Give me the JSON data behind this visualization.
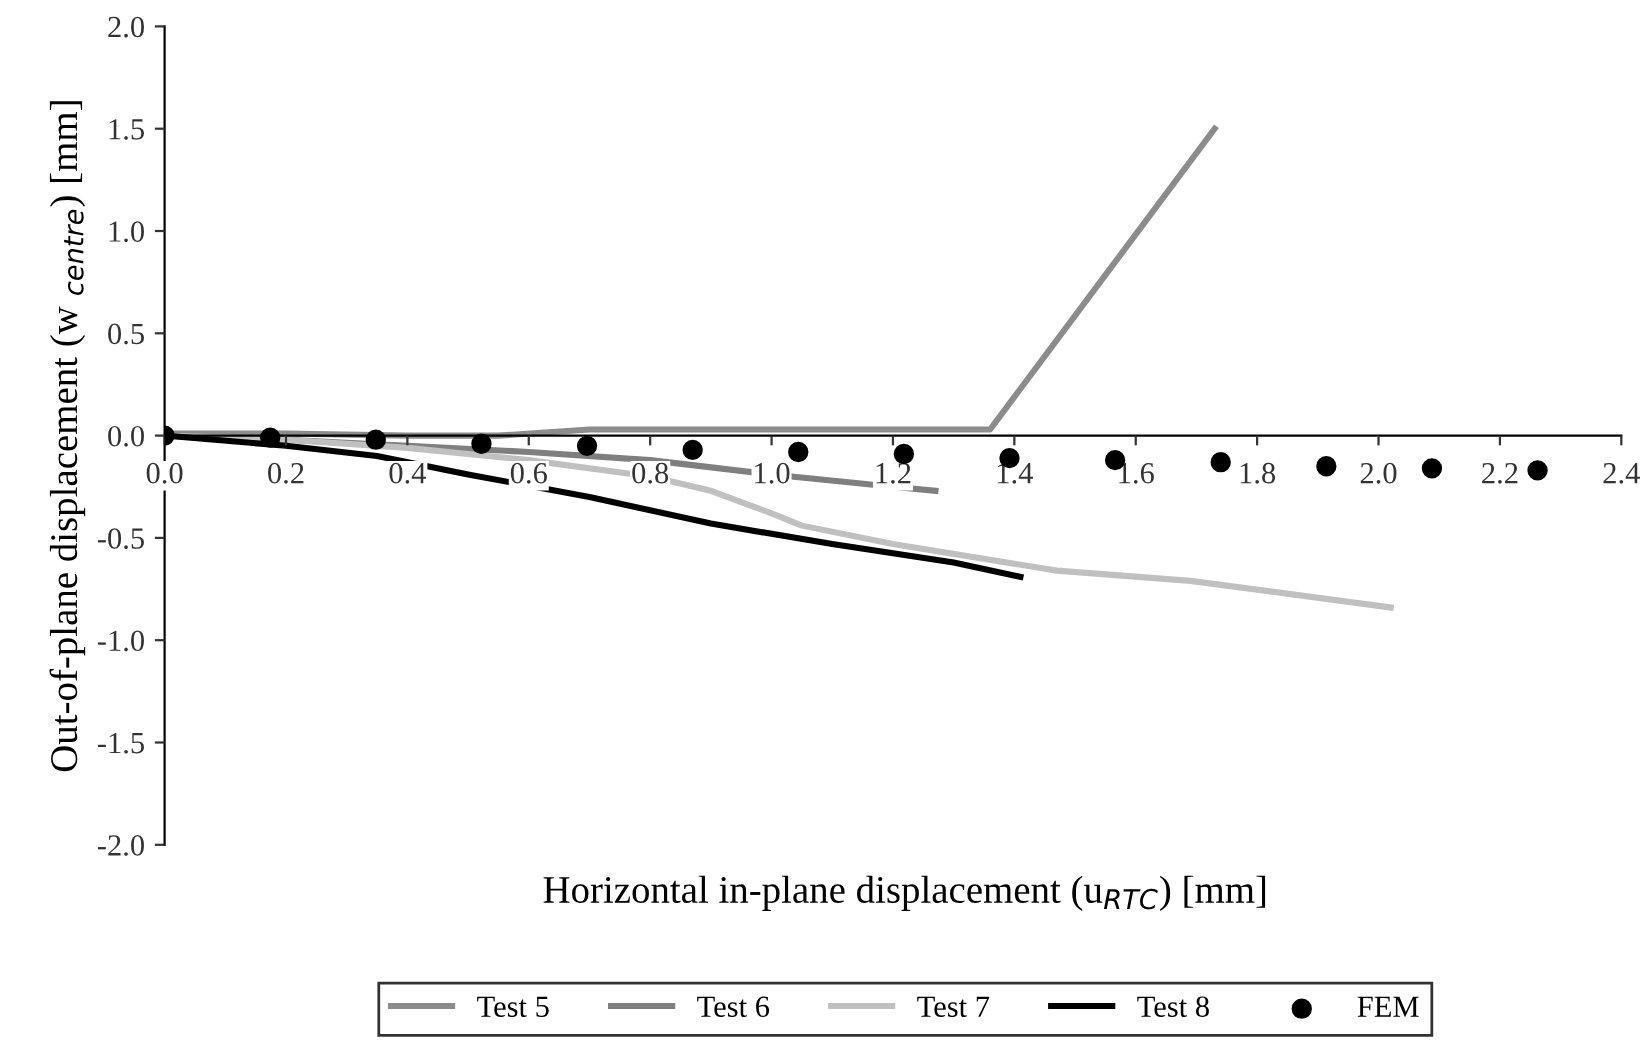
{
  "chart_data": {
    "type": "line",
    "xlabel": "Horizontal in-plane displacement (u$_{RTC}$) [mm]",
    "ylabel": "Out-of-plane displacement (w $_{centre}$) [mm]",
    "xlim": [
      0,
      2.4
    ],
    "xticks": [
      {
        "value": 0,
        "label": "0.0"
      },
      0.2,
      0.4,
      0.6,
      0.8,
      {
        "value": 1,
        "label": "1.0"
      },
      1.2,
      1.4,
      1.6,
      1.8,
      {
        "value": 2,
        "label": "2.0"
      },
      2.2,
      2.4
    ],
    "ylim": [
      -2,
      2
    ],
    "yticks": [
      {
        "value": -2,
        "label": "-2.0"
      },
      -1.5,
      {
        "value": -1,
        "label": "-1.0"
      },
      -0.5,
      {
        "value": 0,
        "label": "0.0"
      },
      0.5,
      {
        "value": 1,
        "label": "1.0"
      },
      1.5,
      {
        "value": 2,
        "label": "2.0"
      }
    ],
    "grid": false,
    "legend": "bottom",
    "line_style": "solid",
    "series": [
      {
        "name": "Test 5",
        "color": "#8c8c8c",
        "x": [
          0,
          0.2,
          0.4,
          0.55,
          0.7,
          1.0,
          1.36,
          1.73
        ],
        "values": [
          0.01,
          0.01,
          0.0,
          0.0,
          0.03,
          0.03,
          0.03,
          1.5
        ]
      },
      {
        "name": "Test 6",
        "color": "#7f7f7f",
        "x": [
          0,
          0.2,
          0.4,
          0.6,
          0.8,
          1.0,
          1.2,
          1.27
        ],
        "values": [
          0,
          -0.02,
          -0.05,
          -0.08,
          -0.12,
          -0.19,
          -0.25,
          -0.27
        ]
      },
      {
        "name": "Test 7",
        "color": "#c0c0c0",
        "x": [
          0,
          0.2,
          0.4,
          0.6,
          0.8,
          0.9,
          1.0,
          1.05,
          1.2,
          1.47,
          1.69,
          2.02
        ],
        "values": [
          0,
          -0.02,
          -0.06,
          -0.12,
          -0.2,
          -0.27,
          -0.38,
          -0.44,
          -0.53,
          -0.66,
          -0.71,
          -0.84
        ]
      },
      {
        "name": "Test 8",
        "color": "#000000",
        "x": [
          0,
          0.2,
          0.35,
          0.5,
          0.7,
          0.9,
          1.1,
          1.3,
          1.41
        ],
        "values": [
          0,
          -0.05,
          -0.1,
          -0.19,
          -0.3,
          -0.43,
          -0.53,
          -0.62,
          -0.69
        ]
      },
      {
        "name": "FEM",
        "type": "scatter",
        "marker": "circle",
        "color": "#000000",
        "x": [
          0,
          0.174,
          0.348,
          0.522,
          0.696,
          0.87,
          1.044,
          1.218,
          1.392,
          1.566,
          1.74,
          1.914,
          2.088,
          2.262
        ],
        "values": [
          0,
          -0.01,
          -0.02,
          -0.04,
          -0.05,
          -0.07,
          -0.08,
          -0.09,
          -0.11,
          -0.12,
          -0.13,
          -0.15,
          -0.16,
          -0.17
        ]
      }
    ]
  }
}
